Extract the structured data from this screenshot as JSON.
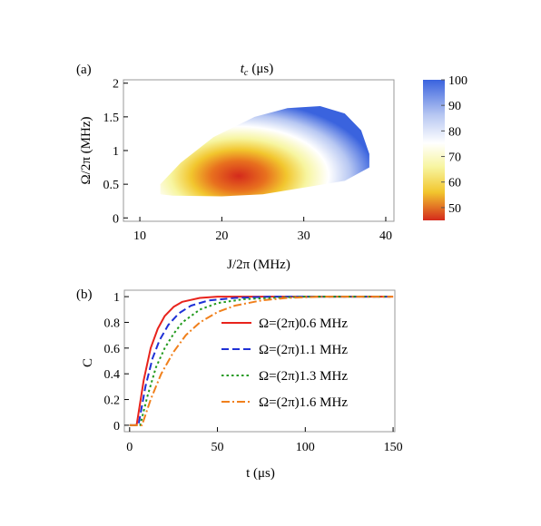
{
  "chart_data": [
    {
      "panel": "(a)",
      "type": "heatmap",
      "title": "t",
      "title_sub": "c",
      "title_unit": "(μs)",
      "xlabel": "J/2π (MHz)",
      "ylabel": "Ω/2π (MHz)",
      "xlim": [
        8,
        41
      ],
      "ylim": [
        -0.05,
        2.05
      ],
      "xticks": [
        10,
        20,
        30,
        40
      ],
      "xtick_labels": [
        "10",
        "20",
        "30",
        "40"
      ],
      "yticks": [
        0,
        0.5,
        1,
        1.5,
        2
      ],
      "ytick_labels": [
        "0",
        "0.5",
        "1",
        "1.5",
        "2"
      ],
      "colorbar": {
        "min": 45,
        "max": 100,
        "ticks": [
          50,
          60,
          70,
          80,
          90,
          100
        ],
        "tick_labels": [
          "50",
          "60",
          "70",
          "80",
          "90",
          "100"
        ]
      },
      "colormap": [
        "#d42a1c",
        "#f2c62e",
        "#f7f5a0",
        "#ffffff",
        "#b7c7f2",
        "#3a63de"
      ],
      "region": {
        "min_value_location": {
          "J": 24,
          "Omega": 0.6,
          "value": 45
        },
        "max_value": 100,
        "boundary": [
          [
            12.5,
            0.35
          ],
          [
            12.5,
            0.5
          ],
          [
            15,
            0.82
          ],
          [
            19,
            1.2
          ],
          [
            24,
            1.5
          ],
          [
            28,
            1.63
          ],
          [
            32,
            1.66
          ],
          [
            35,
            1.55
          ],
          [
            37,
            1.3
          ],
          [
            38,
            0.95
          ],
          [
            38,
            0.75
          ],
          [
            35,
            0.55
          ],
          [
            30,
            0.45
          ],
          [
            25,
            0.35
          ],
          [
            20,
            0.32
          ],
          [
            14,
            0.33
          ]
        ]
      }
    },
    {
      "panel": "(b)",
      "type": "line",
      "xlabel": "t (μs)",
      "ylabel": "C",
      "xlim": [
        -3,
        151
      ],
      "ylim": [
        -0.05,
        1.05
      ],
      "xticks": [
        0,
        50,
        100,
        150
      ],
      "xtick_labels": [
        "0",
        "50",
        "100",
        "150"
      ],
      "yticks": [
        0,
        0.2,
        0.4,
        0.6,
        0.8,
        1
      ],
      "ytick_labels": [
        "0",
        "0.2",
        "0.4",
        "0.6",
        "0.8",
        "1"
      ],
      "legend_position": "center-right",
      "series": [
        {
          "name": "Ω=(2π)0.6 MHz",
          "color": "#e8231c",
          "dash": "solid",
          "x": [
            0,
            4,
            8,
            12,
            16,
            20,
            25,
            30,
            40,
            50,
            70,
            100,
            150
          ],
          "values": [
            0,
            0,
            0.35,
            0.6,
            0.75,
            0.85,
            0.92,
            0.96,
            0.99,
            1,
            1,
            1,
            1
          ]
        },
        {
          "name": "Ω=(2π)1.1 MHz",
          "color": "#1f31d6",
          "dash": "dashed",
          "x": [
            0,
            5,
            9,
            13,
            17,
            22,
            28,
            35,
            45,
            60,
            80,
            100,
            150
          ],
          "values": [
            0,
            0,
            0.3,
            0.52,
            0.66,
            0.78,
            0.87,
            0.93,
            0.97,
            0.99,
            1,
            1,
            1
          ]
        },
        {
          "name": "Ω=(2π)1.3 MHz",
          "color": "#229a1e",
          "dash": "dotted",
          "x": [
            0,
            6,
            10,
            15,
            20,
            25,
            30,
            40,
            50,
            65,
            80,
            100,
            150
          ],
          "values": [
            0,
            0,
            0.22,
            0.45,
            0.6,
            0.71,
            0.8,
            0.9,
            0.95,
            0.98,
            0.99,
            1,
            1
          ]
        },
        {
          "name": "Ω=(2π)1.6 MHz",
          "color": "#f0801c",
          "dash": "dashdot",
          "x": [
            0,
            7,
            12,
            18,
            25,
            32,
            40,
            50,
            60,
            75,
            90,
            110,
            150
          ],
          "values": [
            0,
            0,
            0.2,
            0.4,
            0.57,
            0.7,
            0.8,
            0.88,
            0.93,
            0.97,
            0.99,
            1,
            1
          ]
        }
      ]
    }
  ]
}
